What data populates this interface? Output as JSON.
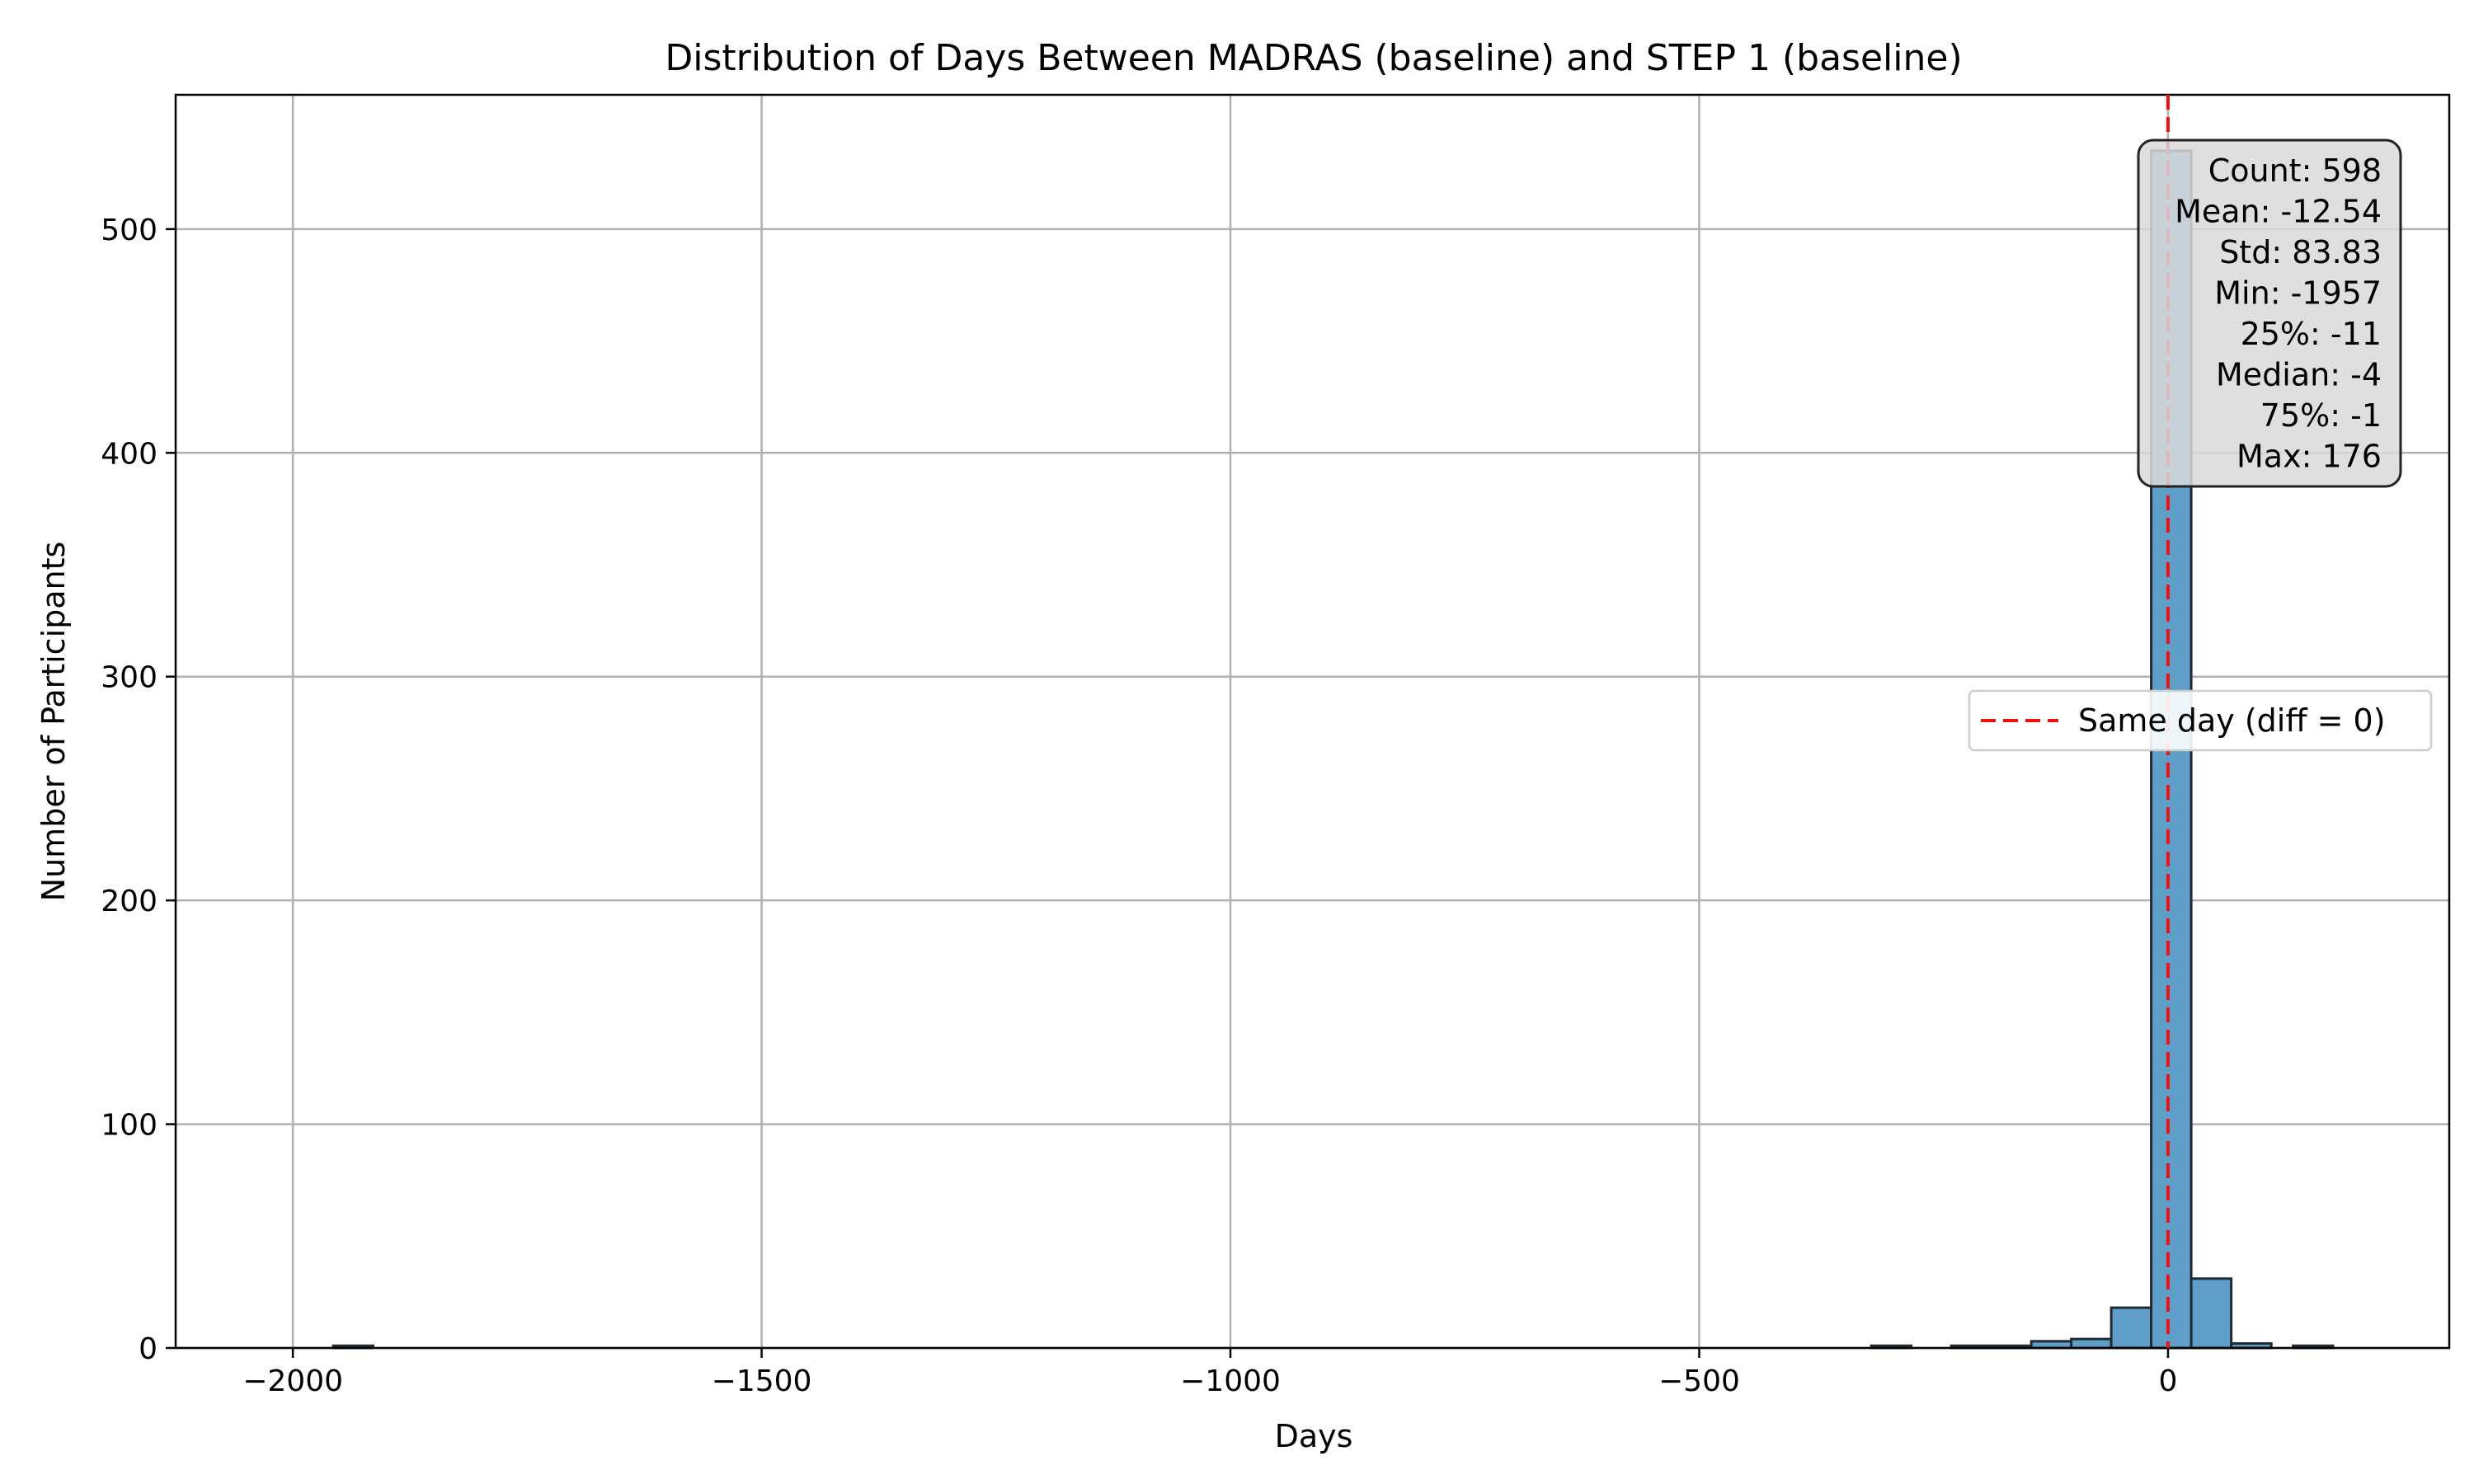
{
  "chart_data": {
    "type": "bar",
    "title": "Distribution of Days Between MADRAS (baseline) and STEP 1 (baseline)",
    "xlabel": "Days",
    "ylabel": "Number of Participants",
    "xlim": [
      -2125,
      300
    ],
    "ylim": [
      0,
      560
    ],
    "xticks": [
      -2000,
      -1500,
      -1000,
      -500,
      0
    ],
    "xtick_labels": [
      "−2000",
      "−1500",
      "−1000",
      "−500",
      "0"
    ],
    "yticks": [
      0,
      100,
      200,
      300,
      400,
      500
    ],
    "ytick_labels": [
      "0",
      "100",
      "200",
      "300",
      "400",
      "500"
    ],
    "grid": true,
    "bin_width": 42.66,
    "bins": [
      {
        "x0": -1957.0,
        "count": 1
      },
      {
        "x0": -316.5,
        "count": 1
      },
      {
        "x0": -231.2,
        "count": 1
      },
      {
        "x0": -188.5,
        "count": 1
      },
      {
        "x0": -145.8,
        "count": 3
      },
      {
        "x0": -103.2,
        "count": 4
      },
      {
        "x0": -60.5,
        "count": 18
      },
      {
        "x0": -17.9,
        "count": 535
      },
      {
        "x0": 24.8,
        "count": 31
      },
      {
        "x0": 67.5,
        "count": 2
      },
      {
        "x0": 133.3,
        "count": 1
      }
    ],
    "reference_line": {
      "x": 0,
      "color": "#ee1111",
      "label": "Same day (diff = 0)"
    },
    "legend": {
      "position": "right",
      "entries": [
        "Same day (diff = 0)"
      ]
    },
    "stats_box": {
      "position": "top-right",
      "lines": [
        "Count: 598",
        "Mean: -12.54",
        "Std: 83.83",
        "Min: -1957",
        "25%: -11",
        "Median: -4",
        "75%: -1",
        "Max: 176"
      ]
    },
    "colors": {
      "bar": "#5f9ec8",
      "bar_edge": "#1f2a33",
      "reference": "#ee1111"
    }
  }
}
